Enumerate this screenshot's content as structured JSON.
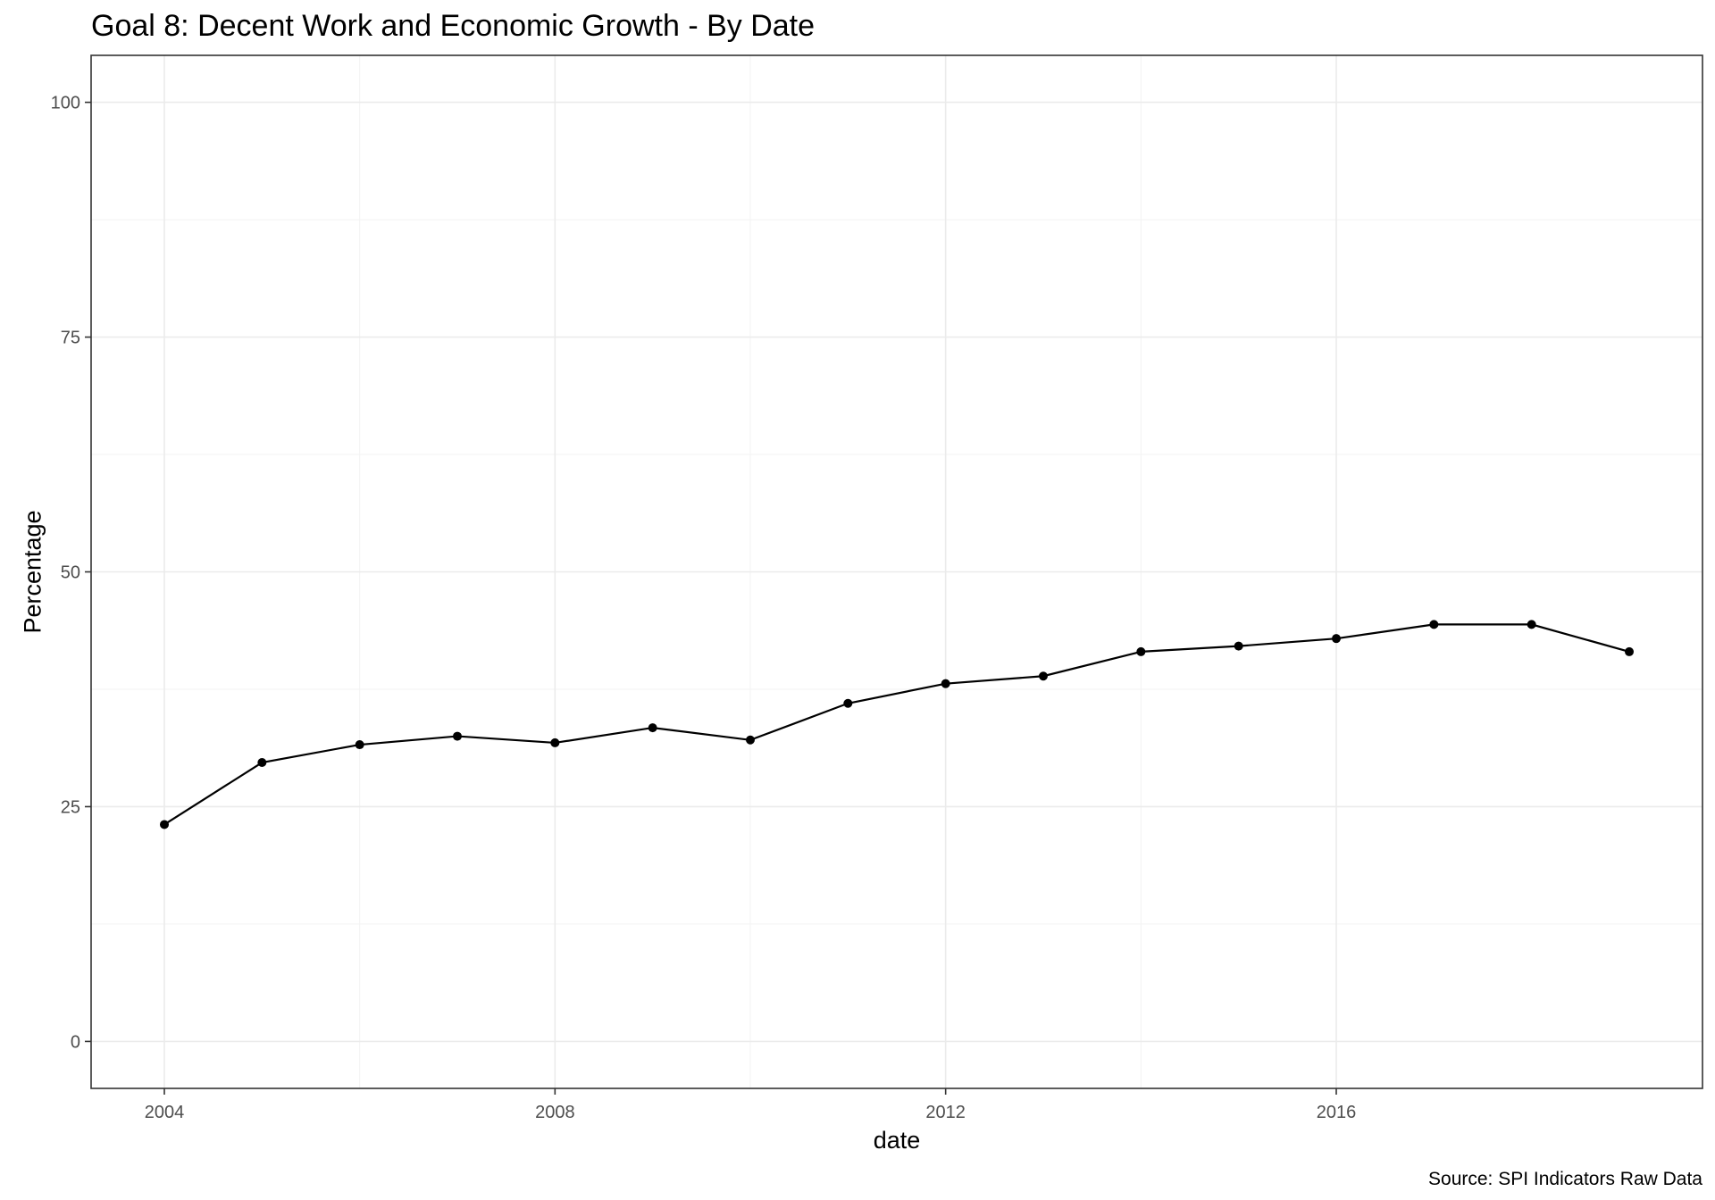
{
  "chart_data": {
    "type": "line",
    "title": "Goal 8: Decent Work and Economic Growth - By Date",
    "xlabel": "date",
    "ylabel": "Percentage",
    "caption": "Source: SPI Indicators Raw Data",
    "xlim": [
      2003.25,
      2019.75
    ],
    "ylim": [
      -5,
      105
    ],
    "x_ticks": [
      2004,
      2008,
      2012,
      2016
    ],
    "x_tick_labels": [
      "2004",
      "2008",
      "2012",
      "2016"
    ],
    "y_ticks": [
      0,
      25,
      50,
      75,
      100
    ],
    "y_tick_labels": [
      "0",
      "25",
      "50",
      "75",
      "100"
    ],
    "grid": true,
    "series": [
      {
        "x": [
          2004,
          2005,
          2006,
          2007,
          2008,
          2009,
          2010,
          2011,
          2012,
          2013,
          2014,
          2015,
          2016,
          2017,
          2018,
          2019
        ],
        "values": [
          23.1,
          29.7,
          31.6,
          32.5,
          31.8,
          33.4,
          32.1,
          36.0,
          38.1,
          38.9,
          41.5,
          42.1,
          42.9,
          44.4,
          44.4,
          41.5
        ]
      }
    ],
    "colors": {
      "line": "#000000",
      "point": "#000000",
      "grid": "#ebebeb",
      "panel_border": "#333333",
      "tick_label": "#4d4d4d"
    }
  }
}
